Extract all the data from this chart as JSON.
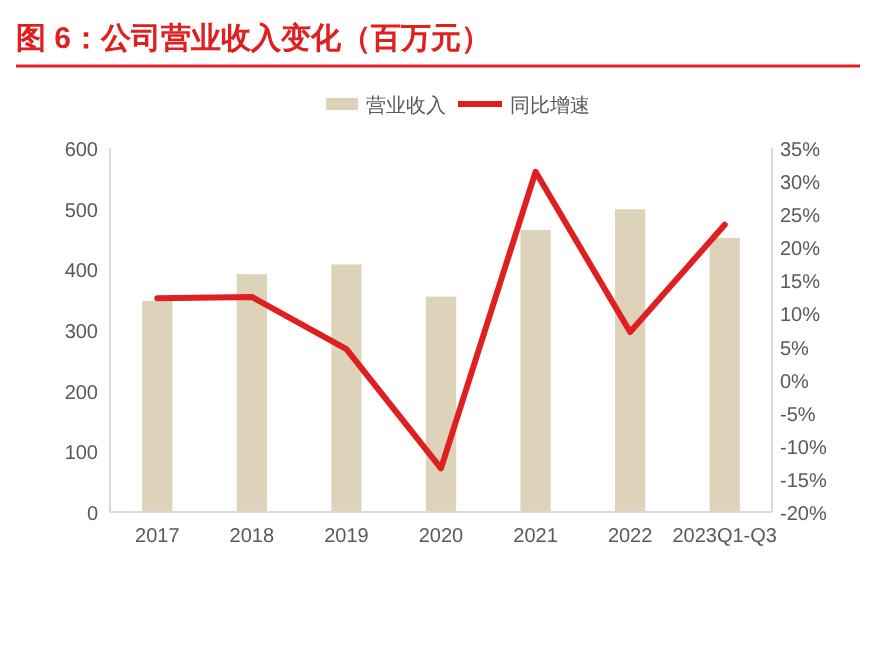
{
  "chart_data": {
    "type": "bar",
    "title": "图 6：公司营业收入变化（百万元）",
    "categories": [
      "2017",
      "2018",
      "2019",
      "2020",
      "2021",
      "2022",
      "2023Q1-Q3"
    ],
    "series": [
      {
        "name": "营业收入",
        "color": "#ddd3bb",
        "values": [
          348,
          392,
          408,
          355,
          465,
          499,
          452
        ]
      },
      {
        "name": "同比增速",
        "type": "line",
        "axis": "y2",
        "color": "#e02020",
        "values": [
          12.3,
          12.5,
          4.6,
          -13.4,
          31.4,
          7.2,
          23.4
        ]
      }
    ],
    "ylim": [
      0,
      600
    ],
    "yticks": [
      0,
      100,
      200,
      300,
      400,
      500,
      600
    ],
    "y2lim": [
      -20,
      35
    ],
    "y2ticks": [
      {
        "value": -20,
        "label": "-20%"
      },
      {
        "value": -15,
        "label": "-15%"
      },
      {
        "value": -10,
        "label": "-10%"
      },
      {
        "value": -5,
        "label": "-5%"
      },
      {
        "value": 0,
        "label": "0%"
      },
      {
        "value": 5,
        "label": "5%"
      },
      {
        "value": 10,
        "label": "10%"
      },
      {
        "value": 15,
        "label": "15%"
      },
      {
        "value": 20,
        "label": "20%"
      },
      {
        "value": 25,
        "label": "25%"
      },
      {
        "value": 30,
        "label": "30%"
      },
      {
        "value": 35,
        "label": "35%"
      }
    ],
    "grid": false,
    "legend": "top",
    "marker": "none",
    "line_style": "solid"
  }
}
